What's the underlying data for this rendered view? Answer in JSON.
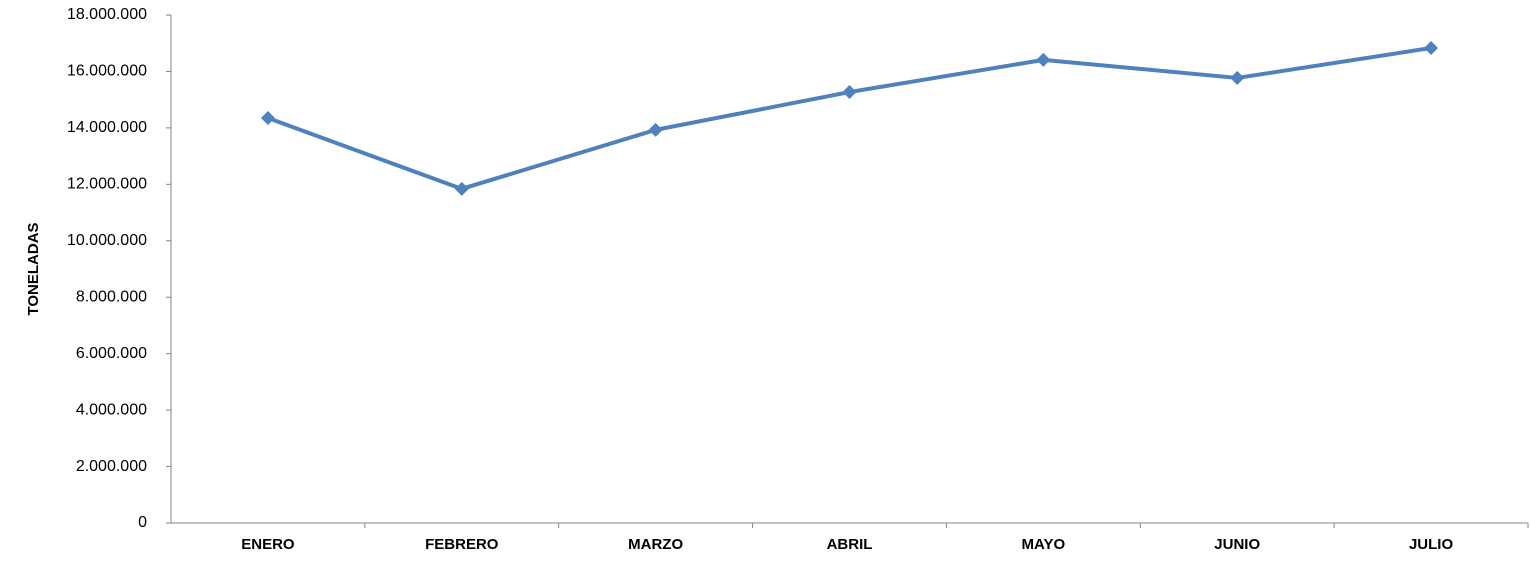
{
  "chart_data": {
    "type": "line",
    "y_label": "TONELADAS",
    "categories": [
      "ENERO",
      "FEBRERO",
      "MARZO",
      "ABRIL",
      "MAYO",
      "JUNIO",
      "JULIO"
    ],
    "series": [
      {
        "name": "TONELADAS",
        "color": "#4f81bd",
        "values": [
          14350000,
          11840000,
          13930000,
          15270000,
          16410000,
          15770000,
          16830000
        ]
      }
    ],
    "ylim": [
      0,
      18000000
    ],
    "yticks": [
      0,
      {
        "value": 2000000,
        "label": "2.000.000"
      },
      {
        "value": 4000000,
        "label": "4.000.000"
      },
      {
        "value": 6000000,
        "label": "6.000.000"
      },
      {
        "value": 8000000,
        "label": "8.000.000"
      },
      {
        "value": 10000000,
        "label": "10.000.000"
      },
      {
        "value": 12000000,
        "label": "12.000.000"
      },
      {
        "value": 14000000,
        "label": "14.000.000"
      },
      {
        "value": 16000000,
        "label": "16.000.000"
      },
      {
        "value": 18000000,
        "label": "18.000.000"
      }
    ],
    "grid": false
  }
}
